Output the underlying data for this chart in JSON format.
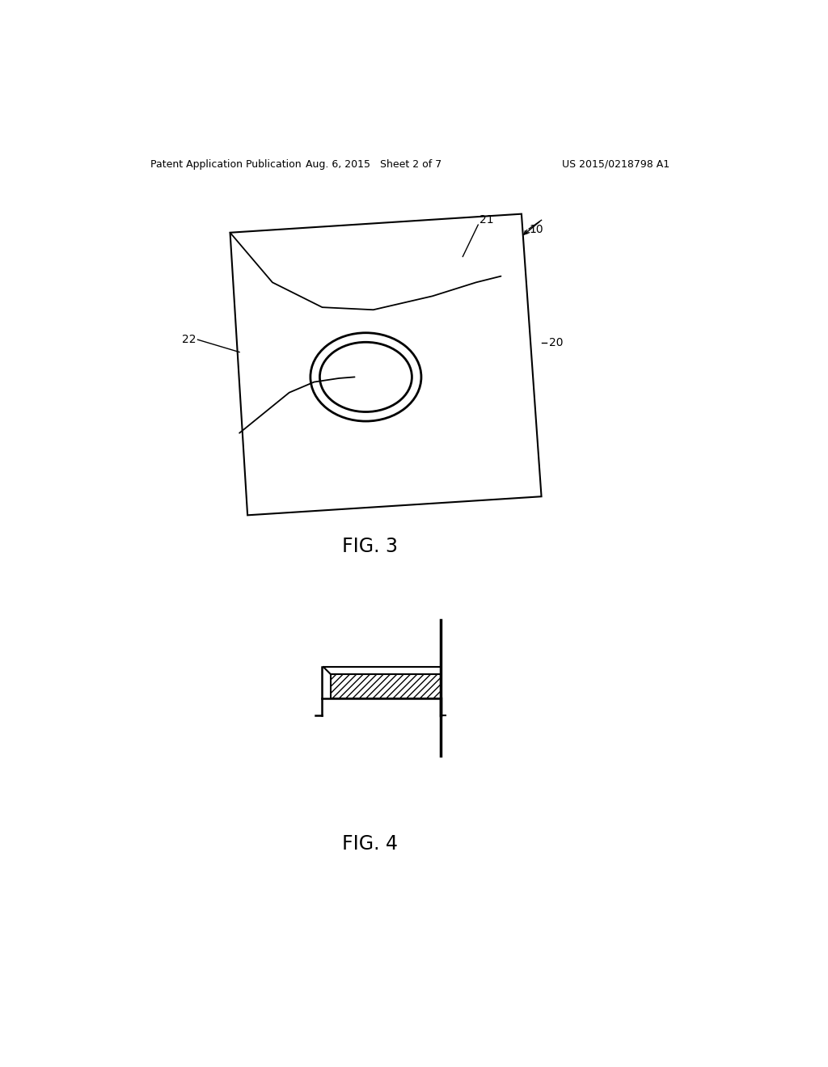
{
  "bg_color": "#ffffff",
  "header_left": "Patent Application Publication",
  "header_center": "Aug. 6, 2015   Sheet 2 of 7",
  "header_right": "US 2015/0218798 A1",
  "fig3_label": "FIG. 3",
  "fig4_label": "FIG. 4",
  "label_10": "10",
  "label_20": "20",
  "label_21": "21",
  "label_22": "22",
  "hatch_pattern": "////"
}
